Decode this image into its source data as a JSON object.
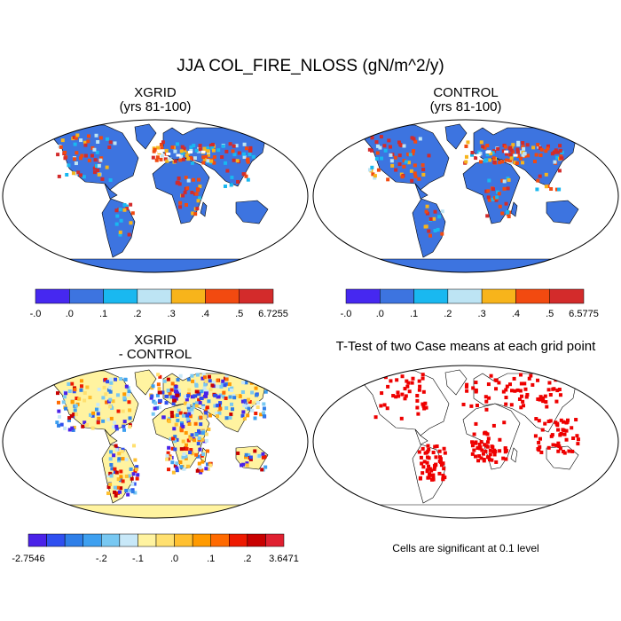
{
  "title": "JJA COL_FIRE_NLOSS (gN/m^2/y)",
  "panels": [
    {
      "id": "xgrid",
      "title_line1": "XGRID",
      "title_line2": "(yrs 81-100)",
      "land_color": "#3d74e0",
      "colorbar": {
        "colors": [
          "#4628f0",
          "#3d74e0",
          "#19b8f0",
          "#bde4f4",
          "#f7b41b",
          "#f24a10",
          "#d32b2b"
        ],
        "labels": [
          "-.0",
          ".0",
          ".1",
          ".2",
          ".3",
          ".4",
          ".5",
          "6.7255"
        ]
      }
    },
    {
      "id": "control",
      "title_line1": "CONTROL",
      "title_line2": "(yrs 81-100)",
      "land_color": "#3d74e0",
      "colorbar": {
        "colors": [
          "#4628f0",
          "#3d74e0",
          "#19b8f0",
          "#bde4f4",
          "#f7b41b",
          "#f24a10",
          "#d32b2b"
        ],
        "labels": [
          "-.0",
          ".0",
          ".1",
          ".2",
          ".3",
          ".4",
          ".5",
          "6.5775"
        ]
      }
    },
    {
      "id": "difference",
      "title_line1": "XGRID",
      "title_line2": "- CONTROL",
      "land_color": "#fff3a0",
      "colorbar": {
        "colors": [
          "#4a22e8",
          "#2f4ff0",
          "#2f7fe8",
          "#3ea0f0",
          "#78c8f2",
          "#c8e8f8",
          "#fff3a0",
          "#ffe070",
          "#ffc030",
          "#ff9a00",
          "#ff6a00",
          "#ee1a00",
          "#c80000",
          "#e02030"
        ],
        "labels": [
          "-2.7546",
          "-.2",
          "-.1",
          ".0",
          ".1",
          ".2",
          "3.6471"
        ]
      }
    },
    {
      "id": "ttest",
      "title_line1": "T-Test of two Case means at each grid point",
      "land_color": "#ffffff",
      "significance_color": "#ee0000",
      "note": "Cells are significant at 0.1 level"
    }
  ]
}
